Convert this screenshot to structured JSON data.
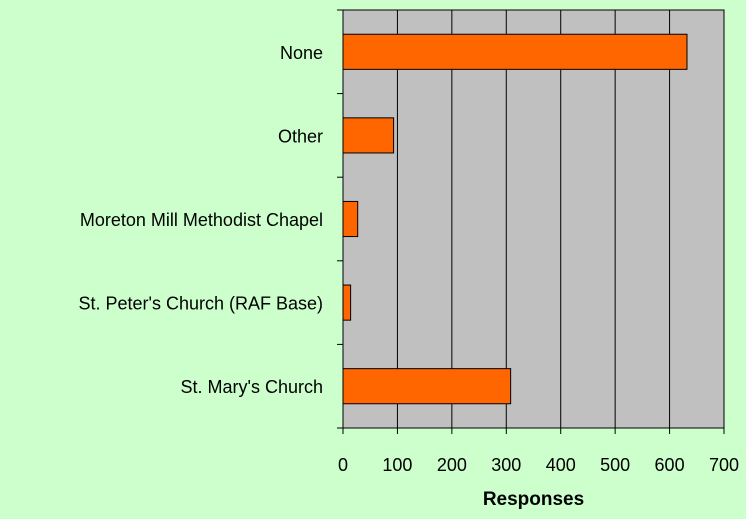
{
  "chart_data": {
    "type": "bar",
    "orientation": "horizontal",
    "categories": [
      "None",
      "Other",
      "Moreton Mill Methodist Chapel",
      "St. Peter's Church (RAF Base)",
      "St. Mary's Church"
    ],
    "values": [
      632,
      93,
      27,
      14,
      308
    ],
    "xlabel": "Responses",
    "ylabel": "",
    "xlim": [
      0,
      700
    ],
    "x_ticks": [
      "0",
      "100",
      "200",
      "300",
      "400",
      "500",
      "600",
      "700"
    ],
    "grid": "vertical",
    "legend": "none"
  },
  "colors": {
    "page_background": "#CCFFCC",
    "plot_background": "#C0C0C0",
    "bar_fill": "#FF6600",
    "bar_stroke": "#000000",
    "gridline": "#000000"
  }
}
